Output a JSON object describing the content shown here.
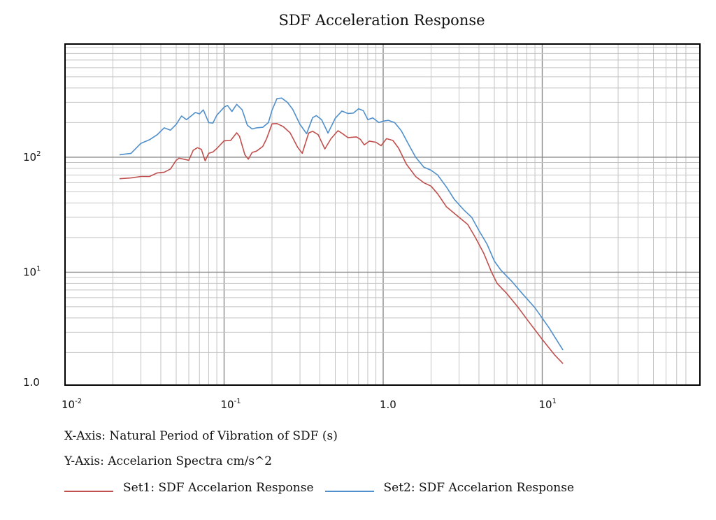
{
  "chart_data": {
    "type": "line",
    "title": "SDF Acceleration Response",
    "xscale": "log",
    "yscale": "log",
    "xlim": [
      0.01,
      80
    ],
    "ylim": [
      1,
      900
    ],
    "grid": true,
    "legend_position": "bottom",
    "x_ticks": [
      {
        "base": "10",
        "exp": "-2",
        "value": 0.01
      },
      {
        "base": "10",
        "exp": "-1",
        "value": 0.1
      },
      {
        "base": "1.0",
        "exp": "",
        "value": 1
      },
      {
        "base": "10",
        "exp": "1",
        "value": 10
      }
    ],
    "y_ticks": [
      {
        "base": "1.0",
        "exp": "",
        "value": 1
      },
      {
        "base": "10",
        "exp": "1",
        "value": 10
      },
      {
        "base": "10",
        "exp": "2",
        "value": 100
      }
    ],
    "captions": {
      "xlabel": "X-Axis: Natural Period of Vibration of SDF (s)",
      "ylabel": "Y-Axis: Accelarion Spectra cm/s^2"
    },
    "series": [
      {
        "name": "Set1: SDF Accelarion Response",
        "color": "#c0504d",
        "points": [
          [
            0.022,
            65
          ],
          [
            0.026,
            66
          ],
          [
            0.03,
            68
          ],
          [
            0.034,
            68
          ],
          [
            0.038,
            73
          ],
          [
            0.042,
            74
          ],
          [
            0.046,
            79
          ],
          [
            0.05,
            94
          ],
          [
            0.052,
            98
          ],
          [
            0.056,
            96
          ],
          [
            0.06,
            94
          ],
          [
            0.064,
            115
          ],
          [
            0.068,
            121
          ],
          [
            0.072,
            117
          ],
          [
            0.076,
            93
          ],
          [
            0.08,
            108
          ],
          [
            0.085,
            111
          ],
          [
            0.09,
            119
          ],
          [
            0.1,
            139
          ],
          [
            0.11,
            140
          ],
          [
            0.12,
            163
          ],
          [
            0.125,
            152
          ],
          [
            0.135,
            105
          ],
          [
            0.142,
            96
          ],
          [
            0.15,
            110
          ],
          [
            0.16,
            113
          ],
          [
            0.175,
            124
          ],
          [
            0.185,
            145
          ],
          [
            0.2,
            195
          ],
          [
            0.215,
            196
          ],
          [
            0.235,
            185
          ],
          [
            0.26,
            163
          ],
          [
            0.29,
            122
          ],
          [
            0.31,
            108
          ],
          [
            0.34,
            162
          ],
          [
            0.36,
            168
          ],
          [
            0.39,
            157
          ],
          [
            0.43,
            118
          ],
          [
            0.47,
            145
          ],
          [
            0.52,
            170
          ],
          [
            0.56,
            159
          ],
          [
            0.6,
            148
          ],
          [
            0.68,
            150
          ],
          [
            0.72,
            143
          ],
          [
            0.76,
            128
          ],
          [
            0.82,
            138
          ],
          [
            0.9,
            135
          ],
          [
            0.97,
            126
          ],
          [
            1.05,
            145
          ],
          [
            1.15,
            140
          ],
          [
            1.25,
            120
          ],
          [
            1.4,
            87
          ],
          [
            1.6,
            68
          ],
          [
            1.8,
            60
          ],
          [
            2.0,
            56
          ],
          [
            2.2,
            48
          ],
          [
            2.5,
            37
          ],
          [
            3.0,
            30
          ],
          [
            3.4,
            26
          ],
          [
            3.8,
            20
          ],
          [
            4.3,
            14.5
          ],
          [
            4.8,
            10
          ],
          [
            5.2,
            8.0
          ],
          [
            6.0,
            6.5
          ],
          [
            7.0,
            5.0
          ],
          [
            8.0,
            3.9
          ],
          [
            10.0,
            2.6
          ],
          [
            12.0,
            1.9
          ],
          [
            13.5,
            1.6
          ]
        ]
      },
      {
        "name": "Set2: SDF Accelarion Response",
        "color": "#4f8fcc",
        "points": [
          [
            0.022,
            105
          ],
          [
            0.026,
            108
          ],
          [
            0.03,
            132
          ],
          [
            0.034,
            142
          ],
          [
            0.038,
            157
          ],
          [
            0.042,
            180
          ],
          [
            0.046,
            172
          ],
          [
            0.05,
            193
          ],
          [
            0.054,
            228
          ],
          [
            0.058,
            212
          ],
          [
            0.062,
            228
          ],
          [
            0.066,
            245
          ],
          [
            0.07,
            238
          ],
          [
            0.074,
            258
          ],
          [
            0.08,
            200
          ],
          [
            0.085,
            198
          ],
          [
            0.09,
            232
          ],
          [
            0.1,
            272
          ],
          [
            0.105,
            282
          ],
          [
            0.112,
            250
          ],
          [
            0.12,
            288
          ],
          [
            0.13,
            258
          ],
          [
            0.14,
            190
          ],
          [
            0.15,
            176
          ],
          [
            0.16,
            180
          ],
          [
            0.175,
            182
          ],
          [
            0.19,
            200
          ],
          [
            0.2,
            256
          ],
          [
            0.215,
            323
          ],
          [
            0.23,
            327
          ],
          [
            0.25,
            300
          ],
          [
            0.27,
            261
          ],
          [
            0.3,
            193
          ],
          [
            0.33,
            160
          ],
          [
            0.36,
            221
          ],
          [
            0.38,
            230
          ],
          [
            0.41,
            212
          ],
          [
            0.45,
            162
          ],
          [
            0.5,
            218
          ],
          [
            0.55,
            252
          ],
          [
            0.6,
            240
          ],
          [
            0.65,
            242
          ],
          [
            0.7,
            264
          ],
          [
            0.75,
            254
          ],
          [
            0.8,
            212
          ],
          [
            0.86,
            220
          ],
          [
            0.94,
            200
          ],
          [
            1.0,
            206
          ],
          [
            1.08,
            209
          ],
          [
            1.18,
            200
          ],
          [
            1.3,
            170
          ],
          [
            1.45,
            128
          ],
          [
            1.6,
            100
          ],
          [
            1.8,
            82
          ],
          [
            2.0,
            77
          ],
          [
            2.2,
            70
          ],
          [
            2.5,
            55
          ],
          [
            2.8,
            43
          ],
          [
            3.2,
            35
          ],
          [
            3.6,
            30
          ],
          [
            4.0,
            23
          ],
          [
            4.5,
            17.5
          ],
          [
            5.0,
            12.5
          ],
          [
            5.5,
            10.4
          ],
          [
            6.5,
            8.2
          ],
          [
            7.5,
            6.5
          ],
          [
            9.0,
            4.9
          ],
          [
            11.0,
            3.3
          ],
          [
            13.5,
            2.1
          ]
        ]
      }
    ]
  }
}
